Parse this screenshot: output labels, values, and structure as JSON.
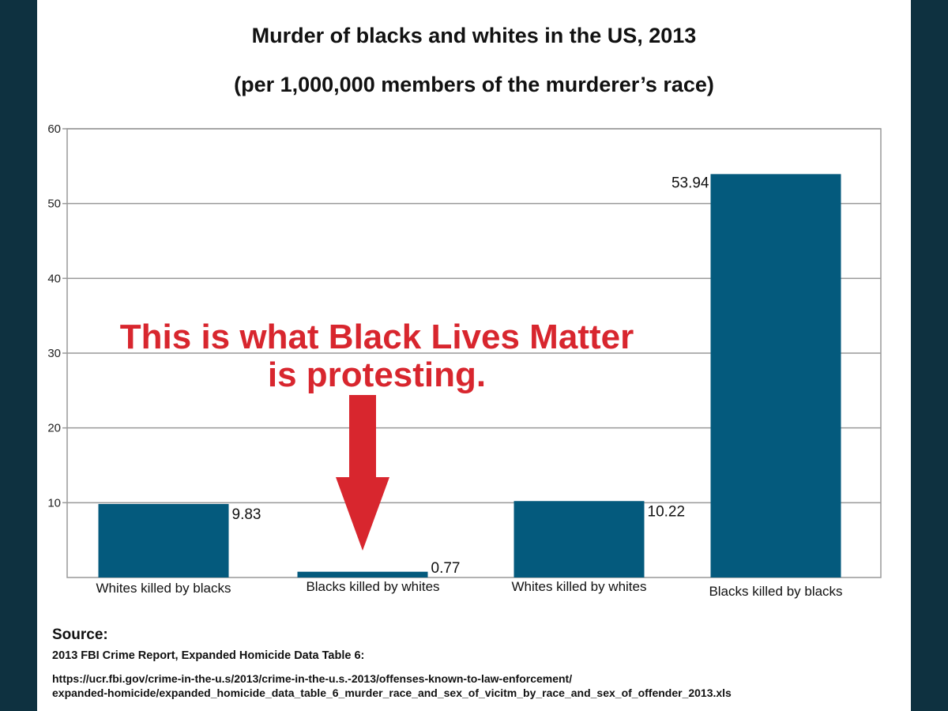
{
  "chart_data": {
    "type": "bar",
    "title": "Murder of blacks and whites in the US, 2013",
    "subtitle": "(per 1,000,000 members of the murderer’s race)",
    "categories": [
      "Whites killed by blacks",
      "Blacks killed by whites",
      "Whites killed by whites",
      "Blacks killed by blacks"
    ],
    "values": [
      9.83,
      0.77,
      10.22,
      53.94
    ],
    "data_labels": [
      "9.83",
      "0.77",
      "10.22",
      "53.94"
    ],
    "ylim": [
      0,
      60
    ],
    "yticks": [
      10,
      20,
      30,
      40,
      50,
      60
    ],
    "ytick_labels": [
      "10",
      "20",
      "30",
      "40",
      "50",
      "60"
    ],
    "grid": true,
    "bar_color": "#045a7d",
    "annotation": {
      "text_line1": "This is what Black Lives Matter",
      "text_line2": "is protesting.",
      "color": "#d8262e",
      "target_category": "Blacks killed by whites"
    }
  },
  "source": {
    "heading": "Source:",
    "line": "2013 FBI Crime Report, Expanded Homicide Data Table 6:",
    "url_line1": "https://ucr.fbi.gov/crime-in-the-u.s/2013/crime-in-the-u.s.-2013/offenses-known-to-law-enforcement/",
    "url_line2": "expanded-homicide/expanded_homicide_data_table_6_murder_race_and_sex_of_vicitm_by_race_and_sex_of_offender_2013.xls"
  },
  "colors": {
    "background": "#0e3140",
    "panel": "#ffffff",
    "bar": "#045a7d",
    "annotation": "#d8262e"
  }
}
